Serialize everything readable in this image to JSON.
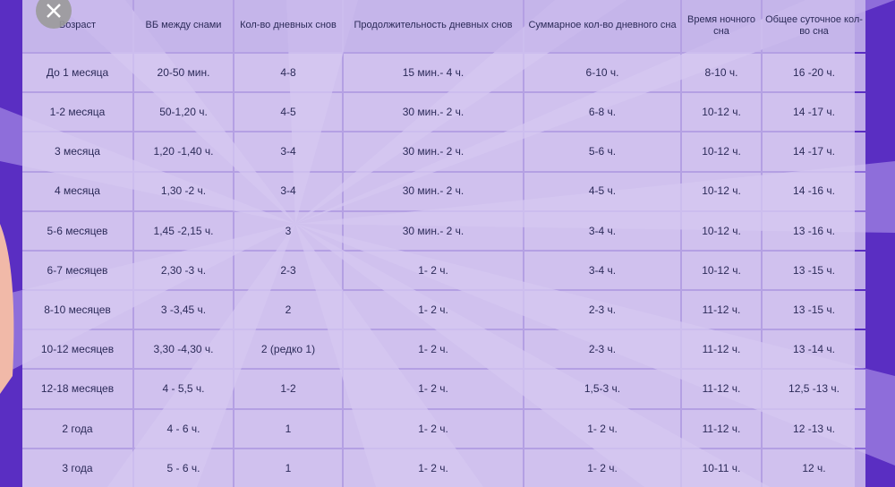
{
  "table": {
    "header": [
      "Возраст",
      "ВБ между снами",
      "Кол-во дневных снов",
      "Продолжительность дневных снов",
      "Суммарное кол-во дневного сна",
      "Время ночного сна",
      "Общее суточное кол-во сна"
    ],
    "rows": [
      [
        "До 1 месяца",
        "20-50 мин.",
        "4-8",
        "15 мин.- 4 ч.",
        "6-10 ч.",
        "8-10 ч.",
        "16 -20 ч."
      ],
      [
        "1-2 месяца",
        "50-1,20 ч.",
        "4-5",
        "30 мин.- 2 ч.",
        "6-8 ч.",
        "10-12 ч.",
        "14 -17 ч."
      ],
      [
        "3 месяца",
        "1,20 -1,40 ч.",
        "3-4",
        "30 мин.- 2 ч.",
        "5-6 ч.",
        "10-12 ч.",
        "14 -17 ч."
      ],
      [
        "4 месяца",
        "1,30 -2 ч.",
        "3-4",
        "30 мин.- 2 ч.",
        "4-5 ч.",
        "10-12 ч.",
        "14 -16 ч."
      ],
      [
        "5-6 месяцев",
        "1,45 -2,15 ч.",
        "3",
        "30 мин.- 2 ч.",
        "3-4 ч.",
        "10-12 ч.",
        "13 -16 ч."
      ],
      [
        "6-7 месяцев",
        "2,30 -3 ч.",
        "2-3",
        "1- 2 ч.",
        "3-4 ч.",
        "10-12 ч.",
        "13 -15 ч."
      ],
      [
        "8-10 месяцев",
        "3 -3,45 ч.",
        "2",
        "1- 2 ч.",
        "2-3 ч.",
        "11-12 ч.",
        "13 -15 ч."
      ],
      [
        "10-12 месяцев",
        "3,30 -4,30 ч.",
        "2 (редко 1)",
        "1- 2 ч.",
        "2-3 ч.",
        "11-12 ч.",
        "13 -14 ч."
      ],
      [
        "12-18 месяцев",
        "4 - 5,5 ч.",
        "1-2",
        "1- 2 ч.",
        "1,5-3 ч.",
        "11-12 ч.",
        "12,5 -13 ч."
      ],
      [
        "2 года",
        "4 - 6 ч.",
        "1",
        "1- 2 ч.",
        "1- 2 ч.",
        "11-12 ч.",
        "12 -13 ч."
      ],
      [
        "3 года",
        "5 - 6 ч.",
        "1",
        "1- 2 ч.",
        "1- 2 ч.",
        "10-11 ч.",
        "12 ч."
      ]
    ]
  }
}
